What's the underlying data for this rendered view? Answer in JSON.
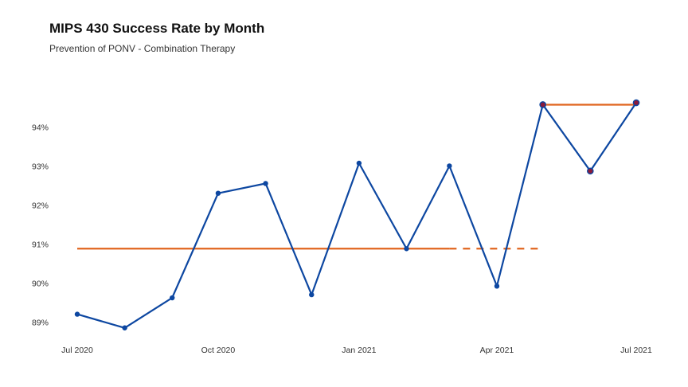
{
  "chart_data": {
    "type": "line",
    "title": "MIPS 430 Success Rate by Month",
    "subtitle": "Prevention of PONV - Combination Therapy",
    "xlabel": "",
    "ylabel": "",
    "x": [
      "2020-07-01",
      "2020-08-01",
      "2020-09-01",
      "2020-10-01",
      "2020-11-01",
      "2020-12-01",
      "2021-01-01",
      "2021-02-01",
      "2021-03-01",
      "2021-04-01",
      "2021-05-01",
      "2021-06-01",
      "2021-07-01"
    ],
    "x_ticks": [
      {
        "date": "2020-07-01",
        "label": "Jul 2020"
      },
      {
        "date": "2020-10-01",
        "label": "Oct 2020"
      },
      {
        "date": "2021-01-01",
        "label": "Jan 2021"
      },
      {
        "date": "2021-04-01",
        "label": "Apr 2021"
      },
      {
        "date": "2021-07-01",
        "label": "Jul 2021"
      }
    ],
    "y_ticks": [
      {
        "value": 89,
        "label": "89%"
      },
      {
        "value": 90,
        "label": "90%"
      },
      {
        "value": 91,
        "label": "91%"
      },
      {
        "value": 92,
        "label": "92%"
      },
      {
        "value": 93,
        "label": "93%"
      },
      {
        "value": 94,
        "label": "94%"
      }
    ],
    "ylim": [
      88.6,
      95.6
    ],
    "grid": false,
    "series": [
      {
        "values": [
          89.2,
          88.85,
          89.62,
          92.3,
          92.55,
          89.7,
          93.07,
          90.88,
          93.0,
          89.92,
          94.57,
          92.87,
          94.62
        ],
        "color": "#0d47a1",
        "special_points": [
          10,
          11,
          12
        ],
        "special_point_color": "#8b1a3a"
      }
    ],
    "reference_lines": [
      {
        "value": 90.88,
        "x_start": "2020-07-01",
        "x_end": "2021-03-01",
        "style": "solid",
        "color": "#e0651e"
      },
      {
        "value": 90.88,
        "x_start": "2021-03-01",
        "x_end": "2021-05-01",
        "style": "dashed",
        "color": "#e0651e"
      },
      {
        "value": 94.57,
        "x_start": "2021-05-01",
        "x_end": "2021-07-01",
        "style": "solid",
        "color": "#e0651e"
      }
    ]
  }
}
